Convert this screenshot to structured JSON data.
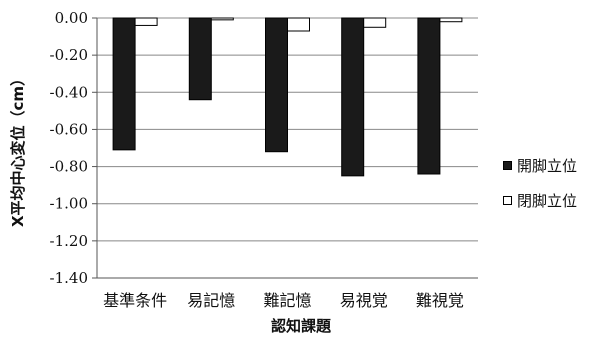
{
  "chart_data": {
    "type": "bar",
    "categories": [
      "基準条件",
      "易記憶",
      "難記憶",
      "易視覚",
      "難視覚"
    ],
    "series": [
      {
        "name": "開脚立位",
        "values": [
          -0.71,
          -0.44,
          -0.72,
          -0.85,
          -0.84
        ],
        "color": "#1a1a1a"
      },
      {
        "name": "閉脚立位",
        "values": [
          -0.04,
          -0.01,
          -0.07,
          -0.05,
          -0.02
        ],
        "color": "#ffffff"
      }
    ],
    "ylabel": "X平均中心変位（cm）",
    "xlabel": "認知課題",
    "ylim": [
      -1.4,
      0
    ],
    "yticks": [
      "0.00",
      "-0.20",
      "-0.40",
      "-0.60",
      "-0.80",
      "-1.00",
      "-1.20",
      "-1.40"
    ],
    "grid": true,
    "legend_position": "right"
  }
}
